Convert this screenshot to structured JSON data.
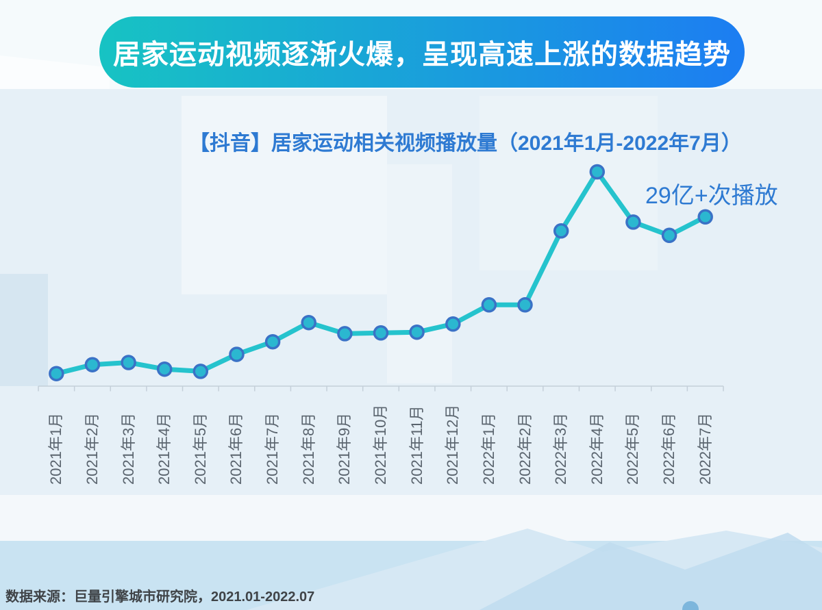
{
  "header": {
    "title": "居家运动视频逐渐火爆，呈现高速上涨的数据趋势"
  },
  "chart_data": {
    "type": "line",
    "title": "【抖音】居家运动相关视频播放量（2021年1月-2022年7月）",
    "unit": "亿次播放",
    "categories": [
      "2021年1月",
      "2021年2月",
      "2021年3月",
      "2021年4月",
      "2021年5月",
      "2021年6月",
      "2021年7月",
      "2021年8月",
      "2021年9月",
      "2021年10月",
      "2021年11月",
      "2021年12月",
      "2022年1月",
      "2022年2月",
      "2022年3月",
      "2022年4月",
      "2022年5月",
      "2022年6月",
      "2022年7月"
    ],
    "values": [
      1.7,
      2.9,
      3.2,
      2.3,
      2.0,
      4.3,
      6.0,
      8.6,
      7.1,
      7.2,
      7.3,
      8.4,
      11.0,
      11.0,
      21.0,
      29.0,
      22.2,
      20.4,
      22.9
    ],
    "annotation": {
      "text": "29亿+次播放",
      "category": "2022年4月",
      "value": 29
    },
    "xlabel": "",
    "ylabel": "",
    "ylim": [
      0,
      31
    ],
    "grid": false,
    "legend": "none",
    "colors": {
      "line": "#25c3cd",
      "marker_fill": "#2bb7d0",
      "marker_stroke": "#3a72c6",
      "axis": "#c4cfd9",
      "tick_label": "#5a646e"
    }
  },
  "footer": {
    "source": "数据来源：巨量引擎城市研究院，2021.01-2022.07"
  },
  "theme": {
    "banner_gradient_start": "#17c3c3",
    "banner_gradient_end": "#1c7df2",
    "title_blue": "#2e7ad2",
    "background": "#e6f0f7",
    "bottom_band": "#c9e3f2"
  }
}
